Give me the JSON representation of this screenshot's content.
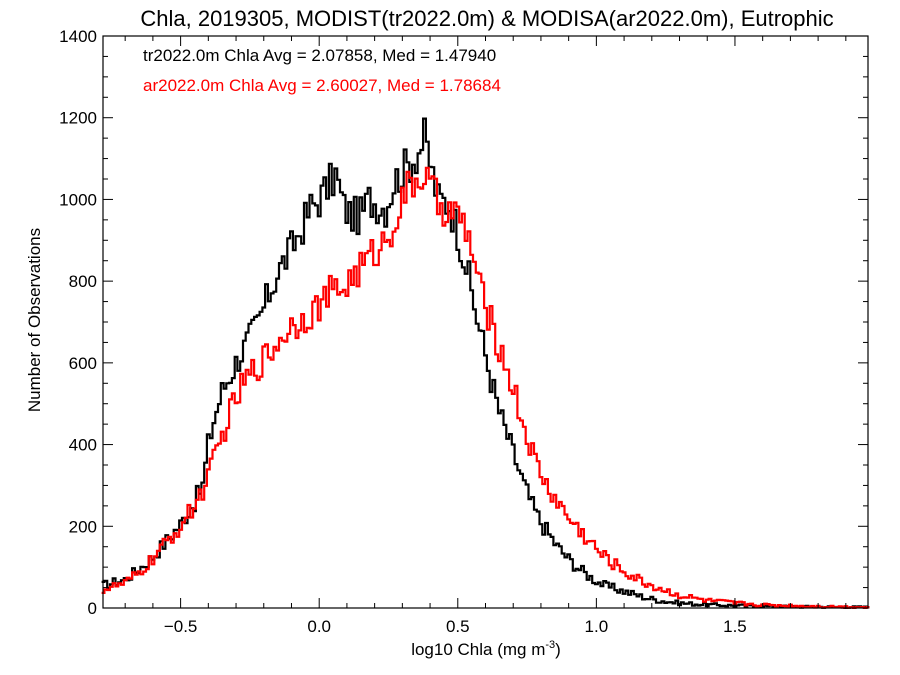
{
  "chart_data": {
    "type": "line",
    "title": "Chla, 2019305, MODIST(tr2022.0m) & MODISA(ar2022.0m), Eutrophic",
    "xlabel": "log10 Chla (mg m",
    "xlabel_sup": "-3",
    "xlabel_end": ")",
    "ylabel": "Number of Observations",
    "xlim": [
      -0.78,
      1.98
    ],
    "ylim": [
      0,
      1400
    ],
    "xticks": [
      -0.5,
      0.0,
      0.5,
      1.0,
      1.5
    ],
    "xtick_labels": [
      "−0.5",
      "0.0",
      "0.5",
      "1.0",
      "1.5"
    ],
    "yticks": [
      0,
      200,
      400,
      600,
      800,
      1000,
      1200,
      1400
    ],
    "ytick_labels": [
      "0",
      "200",
      "400",
      "600",
      "800",
      "1000",
      "1200",
      "1400"
    ],
    "grid": false,
    "legend_position": "top-left",
    "step_plot": true,
    "series": [
      {
        "name": "tr2022.0m",
        "color": "#000000",
        "legend_text": "tr2022.0m Chla Avg = 2.07858, Med = 1.47940",
        "points": [
          [
            -0.78,
            55
          ],
          [
            -0.7,
            70
          ],
          [
            -0.65,
            95
          ],
          [
            -0.6,
            125
          ],
          [
            -0.55,
            165
          ],
          [
            -0.5,
            205
          ],
          [
            -0.45,
            260
          ],
          [
            -0.42,
            300
          ],
          [
            -0.4,
            400
          ],
          [
            -0.38,
            460
          ],
          [
            -0.35,
            530
          ],
          [
            -0.3,
            600
          ],
          [
            -0.26,
            650
          ],
          [
            -0.22,
            700
          ],
          [
            -0.18,
            770
          ],
          [
            -0.15,
            820
          ],
          [
            -0.1,
            880
          ],
          [
            -0.07,
            920
          ],
          [
            -0.03,
            980
          ],
          [
            0.0,
            1000
          ],
          [
            0.03,
            1030
          ],
          [
            0.06,
            1060
          ],
          [
            0.09,
            980
          ],
          [
            0.12,
            960
          ],
          [
            0.15,
            960
          ],
          [
            0.18,
            1000
          ],
          [
            0.21,
            990
          ],
          [
            0.24,
            980
          ],
          [
            0.27,
            1040
          ],
          [
            0.3,
            1070
          ],
          [
            0.33,
            1090
          ],
          [
            0.36,
            1120
          ],
          [
            0.38,
            1150
          ],
          [
            0.41,
            1060
          ],
          [
            0.43,
            1000
          ],
          [
            0.47,
            990
          ],
          [
            0.5,
            920
          ],
          [
            0.53,
            840
          ],
          [
            0.56,
            740
          ],
          [
            0.59,
            650
          ],
          [
            0.62,
            560
          ],
          [
            0.65,
            480
          ],
          [
            0.68,
            420
          ],
          [
            0.71,
            360
          ],
          [
            0.74,
            300
          ],
          [
            0.77,
            250
          ],
          [
            0.8,
            210
          ],
          [
            0.83,
            180
          ],
          [
            0.86,
            150
          ],
          [
            0.9,
            120
          ],
          [
            0.94,
            95
          ],
          [
            0.98,
            75
          ],
          [
            1.03,
            55
          ],
          [
            1.08,
            45
          ],
          [
            1.13,
            35
          ],
          [
            1.18,
            25
          ],
          [
            1.23,
            18
          ],
          [
            1.3,
            12
          ],
          [
            1.4,
            8
          ],
          [
            1.55,
            5
          ],
          [
            1.75,
            3
          ],
          [
            1.98,
            2
          ]
        ]
      },
      {
        "name": "ar2022.0m",
        "color": "#ff0000",
        "legend_text": "ar2022.0m Chla Avg = 2.60027, Med = 1.78684",
        "points": [
          [
            -0.78,
            45
          ],
          [
            -0.7,
            60
          ],
          [
            -0.65,
            85
          ],
          [
            -0.6,
            120
          ],
          [
            -0.55,
            160
          ],
          [
            -0.5,
            200
          ],
          [
            -0.45,
            250
          ],
          [
            -0.42,
            290
          ],
          [
            -0.4,
            320
          ],
          [
            -0.36,
            400
          ],
          [
            -0.32,
            480
          ],
          [
            -0.28,
            540
          ],
          [
            -0.24,
            580
          ],
          [
            -0.2,
            610
          ],
          [
            -0.16,
            640
          ],
          [
            -0.12,
            680
          ],
          [
            -0.08,
            700
          ],
          [
            -0.04,
            720
          ],
          [
            0.0,
            740
          ],
          [
            0.04,
            770
          ],
          [
            0.08,
            780
          ],
          [
            0.12,
            810
          ],
          [
            0.16,
            840
          ],
          [
            0.2,
            870
          ],
          [
            0.24,
            900
          ],
          [
            0.28,
            960
          ],
          [
            0.31,
            1010
          ],
          [
            0.34,
            1040
          ],
          [
            0.37,
            1060
          ],
          [
            0.4,
            1030
          ],
          [
            0.43,
            990
          ],
          [
            0.46,
            980
          ],
          [
            0.49,
            960
          ],
          [
            0.52,
            940
          ],
          [
            0.55,
            880
          ],
          [
            0.58,
            780
          ],
          [
            0.62,
            700
          ],
          [
            0.66,
            620
          ],
          [
            0.7,
            540
          ],
          [
            0.74,
            440
          ],
          [
            0.78,
            360
          ],
          [
            0.82,
            300
          ],
          [
            0.86,
            260
          ],
          [
            0.9,
            220
          ],
          [
            0.94,
            190
          ],
          [
            0.98,
            160
          ],
          [
            1.02,
            130
          ],
          [
            1.06,
            110
          ],
          [
            1.1,
            90
          ],
          [
            1.15,
            70
          ],
          [
            1.2,
            55
          ],
          [
            1.26,
            40
          ],
          [
            1.32,
            28
          ],
          [
            1.4,
            18
          ],
          [
            1.5,
            12
          ],
          [
            1.62,
            7
          ],
          [
            1.8,
            4
          ],
          [
            1.98,
            2
          ]
        ]
      }
    ]
  }
}
